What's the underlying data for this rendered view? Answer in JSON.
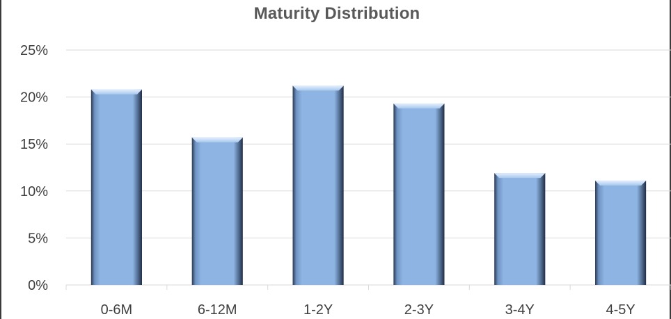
{
  "chart_data": {
    "type": "bar",
    "title": "Maturity Distribution",
    "categories": [
      "0-6M",
      "6-12M",
      "1-2Y",
      "2-3Y",
      "3-4Y",
      "4-5Y"
    ],
    "values": [
      20.8,
      15.7,
      21.2,
      19.3,
      11.9,
      11.1
    ],
    "unit": "%",
    "ylim": [
      0,
      25
    ],
    "yticks": [
      0,
      5,
      10,
      15,
      20,
      25
    ],
    "ytick_labels": [
      "0%",
      "5%",
      "10%",
      "15%",
      "20%",
      "25%"
    ],
    "grid": true,
    "legend": "none",
    "colors": {
      "bar_face": "#8db4e2",
      "bar_highlight": "#c5dcf5",
      "bar_edge_dark": "#1f2d45",
      "grid": "#d9d9d9",
      "title": "#595959",
      "tick": "#3f3f3f"
    }
  }
}
